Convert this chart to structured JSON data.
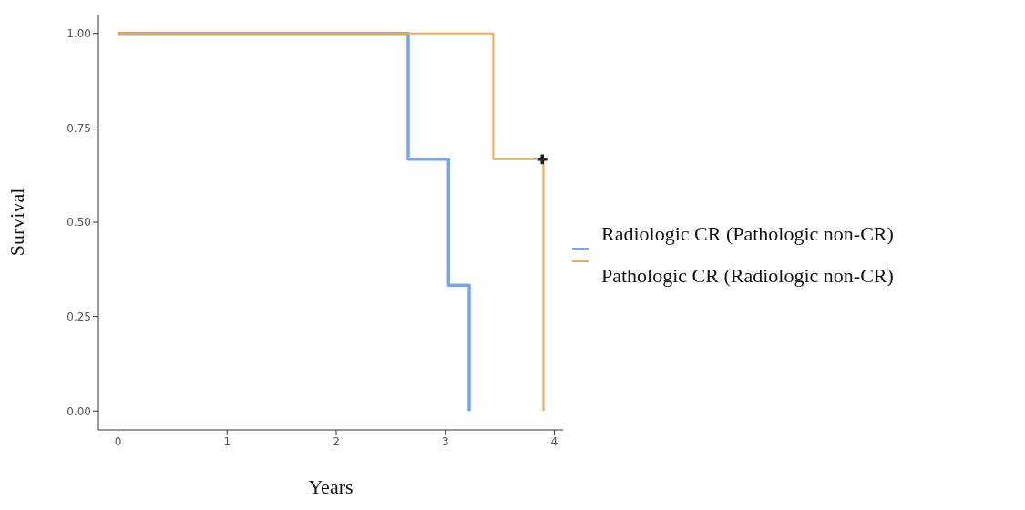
{
  "chart_data": {
    "type": "step",
    "xlabel": "Years",
    "ylabel": "Survival",
    "xlim": [
      -0.18,
      4.08
    ],
    "xticks": [
      0,
      1,
      2,
      3,
      4
    ],
    "ylim": [
      -0.05,
      1.05
    ],
    "yticks": [
      {
        "value": 0,
        "label": "0.00"
      },
      {
        "value": 0.25,
        "label": "0.25"
      },
      {
        "value": 0.5,
        "label": "0.50"
      },
      {
        "value": 0.75,
        "label": "0.75"
      },
      {
        "value": 1,
        "label": "1.00"
      }
    ],
    "grid": false,
    "legend": "right",
    "marker": "none",
    "line_style": "solid",
    "series": [
      {
        "name": "Radiologic CR (Pathologic non-CR)",
        "color": "#76a5eb",
        "x": [
          0,
          2.66,
          3.03,
          3.22
        ],
        "values": [
          1,
          0.667,
          0.333,
          0
        ]
      },
      {
        "name": "Pathologic CR (Radiologic non-CR)",
        "color": "#eaae4c",
        "x": [
          0,
          3.44,
          3.9
        ],
        "values": [
          1,
          0.667,
          0
        ]
      },
      {
        "type": "scatter",
        "marker": "cross",
        "color": "#222222",
        "x": [
          3.89
        ],
        "values": [
          0.667
        ]
      }
    ]
  }
}
